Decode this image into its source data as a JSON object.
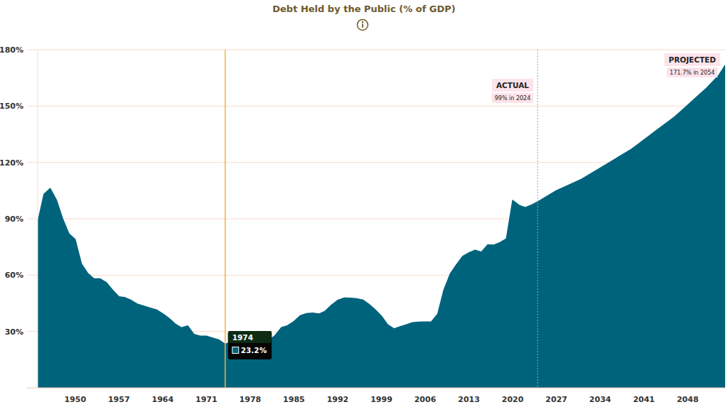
{
  "chart_data": {
    "type": "area",
    "title": "Debt Held by the Public (% of GDP)",
    "color": "#00637c",
    "grid": true,
    "xlim": [
      1944,
      2054
    ],
    "ylim": [
      0,
      180
    ],
    "xticks": [
      1950,
      1957,
      1964,
      1971,
      1978,
      1985,
      1992,
      1999,
      2006,
      2013,
      2020,
      2027,
      2034,
      2041,
      2048
    ],
    "yticks": [
      {
        "value": 30,
        "label": "30%"
      },
      {
        "value": 60,
        "label": "60%"
      },
      {
        "value": 90,
        "label": "90%"
      },
      {
        "value": 120,
        "label": "120%"
      },
      {
        "value": 150,
        "label": "150%"
      },
      {
        "value": 180,
        "label": "180%"
      }
    ],
    "x": [
      1944,
      1945,
      1946,
      1947,
      1948,
      1949,
      1950,
      1951,
      1952,
      1953,
      1954,
      1955,
      1956,
      1957,
      1958,
      1959,
      1960,
      1961,
      1962,
      1963,
      1964,
      1965,
      1966,
      1967,
      1968,
      1969,
      1970,
      1971,
      1972,
      1973,
      1974,
      1975,
      1976,
      1977,
      1978,
      1979,
      1980,
      1981,
      1982,
      1983,
      1984,
      1985,
      1986,
      1987,
      1988,
      1989,
      1990,
      1991,
      1992,
      1993,
      1994,
      1995,
      1996,
      1997,
      1998,
      1999,
      2000,
      2001,
      2002,
      2003,
      2004,
      2005,
      2006,
      2007,
      2008,
      2009,
      2010,
      2011,
      2012,
      2013,
      2014,
      2015,
      2016,
      2017,
      2018,
      2019,
      2020,
      2021,
      2022,
      2023,
      2024,
      2025,
      2026,
      2027,
      2028,
      2029,
      2030,
      2031,
      2032,
      2033,
      2034,
      2035,
      2036,
      2037,
      2038,
      2039,
      2040,
      2041,
      2042,
      2043,
      2044,
      2045,
      2046,
      2047,
      2048,
      2049,
      2050,
      2051,
      2052,
      2053,
      2054
    ],
    "values": [
      88,
      103,
      106.1,
      100,
      90,
      82,
      79,
      66,
      61,
      58,
      58,
      56,
      52,
      48.5,
      48,
      46.5,
      44.5,
      43.5,
      42.5,
      41.5,
      39.5,
      37,
      34,
      32,
      33,
      28.5,
      27.5,
      27.5,
      26.5,
      25.5,
      23.2,
      24.6,
      26.7,
      27.1,
      26.6,
      24.9,
      25.5,
      25.2,
      27.9,
      32.1,
      33.1,
      35.3,
      38.4,
      39.5,
      39.8,
      39.3,
      40.8,
      44,
      46.6,
      47.8,
      47.7,
      47.5,
      46.8,
      44.5,
      41.6,
      38.2,
      33.6,
      31.4,
      32.5,
      33.6,
      34.7,
      35,
      35.1,
      35.2,
      39.2,
      52.2,
      60.6,
      65.5,
      70,
      71.9,
      73.3,
      72.2,
      76.1,
      76,
      77.4,
      79.4,
      99.8,
      97.2,
      96,
      97.3,
      99,
      101,
      103,
      105,
      106.5,
      108,
      109.5,
      111,
      113,
      115,
      117,
      119,
      121,
      123,
      125,
      127,
      129.5,
      132,
      134.5,
      137,
      139.5,
      142,
      144.5,
      147.5,
      150.5,
      153.5,
      156.5,
      159.5,
      163,
      166.5,
      171.7
    ],
    "annotations": [
      {
        "x": 2024,
        "label": "ACTUAL",
        "text": "99% in 2024"
      },
      {
        "x": 2054,
        "label": "PROJECTED",
        "text": "171.7% in 2054"
      }
    ],
    "highlight": {
      "x": 1974,
      "label": "1974",
      "text": "23.2%"
    }
  }
}
